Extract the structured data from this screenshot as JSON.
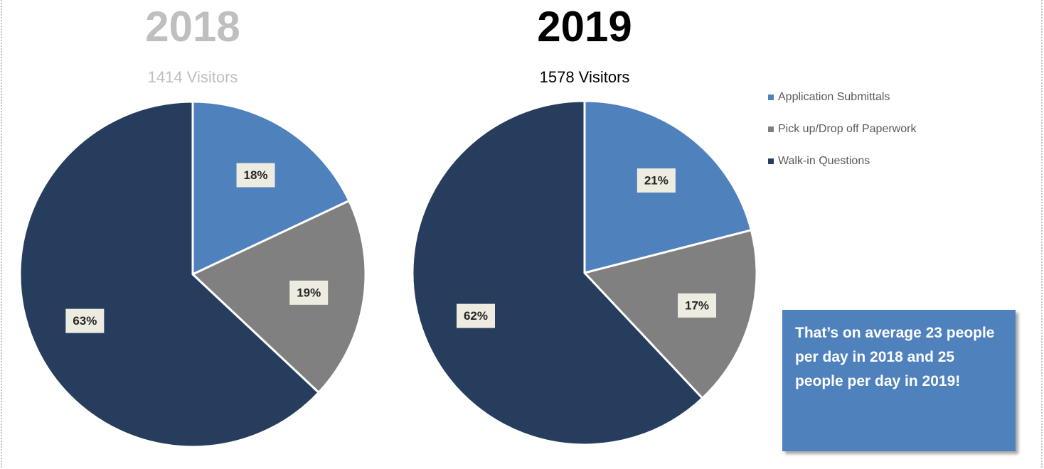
{
  "chart_data": [
    {
      "type": "pie",
      "title": "2018",
      "subtitle": "1414 Visitors",
      "title_color": "#bfbfbf",
      "subtitle_color": "#bfbfbf",
      "values": [
        18,
        19,
        63
      ],
      "value_labels": [
        "18%",
        "19%",
        "63%"
      ]
    },
    {
      "type": "pie",
      "title": "2019",
      "subtitle": "1578 Visitors",
      "title_color": "#000000",
      "subtitle_color": "#000000",
      "values": [
        21,
        17,
        62
      ],
      "value_labels": [
        "21%",
        "17%",
        "62%"
      ]
    }
  ],
  "legend": {
    "categories": [
      "Application Submittals",
      "Pick up/Drop off Paperwork",
      "Walk-in Questions"
    ],
    "colors": [
      "#4f81bd",
      "#808080",
      "#263d5e"
    ]
  },
  "note": "That’s on average 23 people per day in 2018 and 25 people per day in 2019!"
}
